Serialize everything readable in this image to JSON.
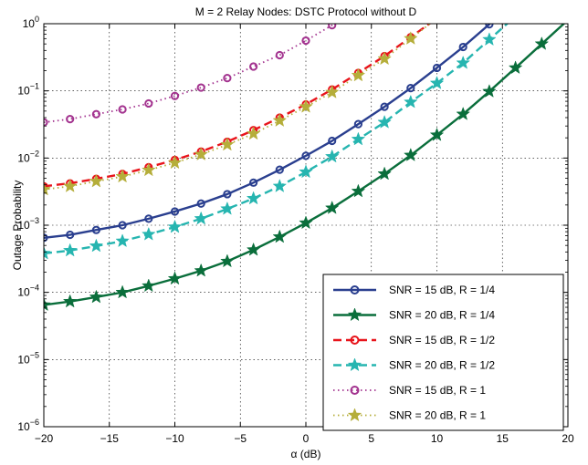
{
  "chart_data": {
    "type": "line",
    "title": "M = 2 Relay Nodes: DSTC Protocol without D",
    "xlabel": "α (dB)",
    "ylabel": "Outage Probability",
    "xlim": [
      -20,
      20
    ],
    "ylim": [
      1e-06,
      1
    ],
    "y_scale": "log",
    "grid": true,
    "legend_position": "bottom-right",
    "x_ticks": [
      -20,
      -15,
      -10,
      -5,
      0,
      5,
      10,
      15,
      20
    ],
    "x_tick_labels": [
      "−20",
      "−15",
      "−10",
      "−5",
      "0",
      "5",
      "10",
      "15",
      "20"
    ],
    "y_ticks": [
      1e-06,
      1e-05,
      0.0001,
      0.001,
      0.01,
      0.1,
      1
    ],
    "y_tick_labels": [
      {
        "base": "10",
        "exp": "−6"
      },
      {
        "base": "10",
        "exp": "−5"
      },
      {
        "base": "10",
        "exp": "−4"
      },
      {
        "base": "10",
        "exp": "−3"
      },
      {
        "base": "10",
        "exp": "−2"
      },
      {
        "base": "10",
        "exp": "−1"
      },
      {
        "base": "10",
        "exp": "0"
      }
    ],
    "series": [
      {
        "name": "SNR = 15 dB, R = 1/4",
        "color": "#2a3f8f",
        "line": "solid",
        "marker": "circle",
        "x": [
          -20,
          -18,
          -16,
          -14,
          -12,
          -10,
          -8,
          -6,
          -4,
          -2,
          0,
          2,
          4,
          6,
          8,
          10,
          12,
          14
        ],
        "y": [
          0.00065,
          0.00072,
          0.00085,
          0.001,
          0.00125,
          0.0016,
          0.0021,
          0.0029,
          0.0043,
          0.0067,
          0.0108,
          0.018,
          0.032,
          0.058,
          0.11,
          0.22,
          0.45,
          0.98
        ]
      },
      {
        "name": "SNR = 20 dB, R = 1/4",
        "color": "#0a6e3b",
        "line": "solid",
        "marker": "star",
        "x": [
          -20,
          -18,
          -16,
          -14,
          -12,
          -10,
          -8,
          -6,
          -4,
          -2,
          0,
          2,
          4,
          6,
          8,
          10,
          12,
          14,
          16,
          18
        ],
        "y": [
          6.5e-05,
          7.3e-05,
          8.5e-05,
          0.0001,
          0.000125,
          0.00016,
          0.00021,
          0.00029,
          0.00043,
          0.00067,
          0.00108,
          0.0018,
          0.0032,
          0.0058,
          0.011,
          0.022,
          0.045,
          0.098,
          0.22,
          0.5
        ]
      },
      {
        "name": "SNR = 15 dB, R = 1/2",
        "color": "#e8141b",
        "line": "dashed",
        "marker": "circle",
        "x": [
          -20,
          -18,
          -16,
          -14,
          -12,
          -10,
          -8,
          -6,
          -4,
          -2,
          0,
          2,
          4,
          6,
          8
        ],
        "y": [
          0.0038,
          0.0042,
          0.0049,
          0.0058,
          0.0073,
          0.0094,
          0.0125,
          0.0175,
          0.026,
          0.04,
          0.063,
          0.105,
          0.185,
          0.33,
          0.63
        ]
      },
      {
        "name": "SNR = 20 dB, R = 1/2",
        "color": "#26b5b0",
        "line": "dashed",
        "marker": "star",
        "x": [
          -20,
          -18,
          -16,
          -14,
          -12,
          -10,
          -8,
          -6,
          -4,
          -2,
          0,
          2,
          4,
          6,
          8,
          10,
          12,
          14
        ],
        "y": [
          0.00038,
          0.00042,
          0.00049,
          0.00058,
          0.00073,
          0.00094,
          0.00125,
          0.00175,
          0.0025,
          0.0038,
          0.0062,
          0.0105,
          0.019,
          0.034,
          0.068,
          0.13,
          0.26,
          0.58
        ]
      },
      {
        "name": "SNR = 15 dB, R = 1",
        "color": "#a3338f",
        "line": "dotted",
        "marker": "circle",
        "x": [
          -20,
          -18,
          -16,
          -14,
          -12,
          -10,
          -8,
          -6,
          -4,
          -2,
          0,
          2
        ],
        "y": [
          0.034,
          0.038,
          0.045,
          0.053,
          0.065,
          0.084,
          0.112,
          0.155,
          0.23,
          0.34,
          0.56,
          0.95
        ]
      },
      {
        "name": "SNR = 20 dB, R = 1",
        "color": "#b5ae3a",
        "line": "dotted",
        "marker": "star",
        "x": [
          -20,
          -18,
          -16,
          -14,
          -12,
          -10,
          -8,
          -6,
          -4,
          -2,
          0,
          2,
          4,
          6,
          8
        ],
        "y": [
          0.0034,
          0.0038,
          0.0045,
          0.0053,
          0.0066,
          0.0085,
          0.0113,
          0.0158,
          0.023,
          0.036,
          0.058,
          0.095,
          0.17,
          0.3,
          0.6
        ]
      }
    ]
  }
}
